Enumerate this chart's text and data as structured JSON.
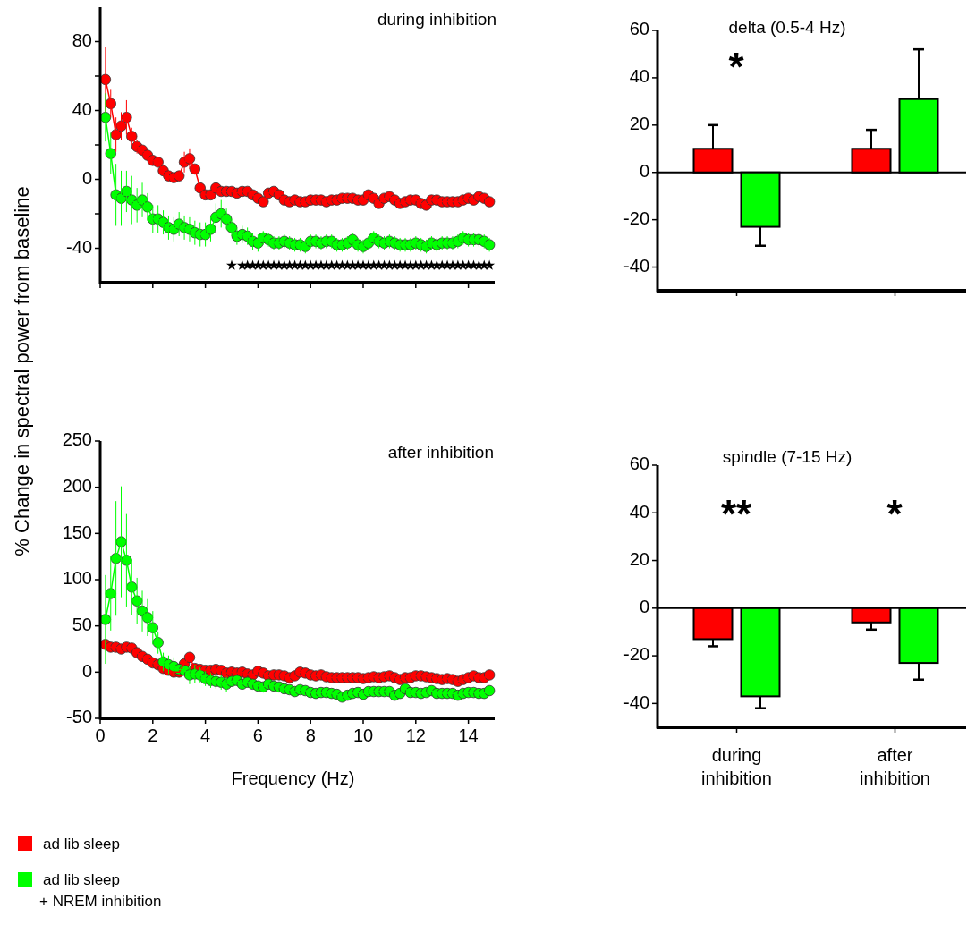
{
  "chart_data": [
    {
      "type": "line",
      "title": "during inhibition",
      "ylabel": "% Change in spectral power from baseline",
      "marker": "circle",
      "legend": "bottom left",
      "tick_labels": "y",
      "xlim": [
        0,
        15
      ],
      "xticks": [
        0,
        2,
        4,
        6,
        8,
        10,
        12,
        14
      ],
      "ylim": [
        -60,
        100
      ],
      "yticks": [
        -40,
        {
          "value": -20,
          "label": null
        },
        0,
        {
          "value": 20,
          "label": null
        },
        40,
        {
          "value": 60,
          "label": null
        },
        80
      ],
      "x": [
        0.2,
        0.4,
        0.6,
        0.8,
        1,
        1.2,
        1.4,
        1.6,
        1.8,
        2,
        2.2,
        2.4,
        2.6,
        2.8,
        3,
        3.2,
        3.4,
        3.6,
        3.8,
        4,
        4.2,
        4.4,
        4.6,
        4.8,
        5,
        5.2,
        5.4,
        5.6,
        5.8,
        6,
        6.2,
        6.4,
        6.6,
        6.8,
        7,
        7.2,
        7.4,
        7.6,
        7.8,
        8,
        8.2,
        8.4,
        8.6,
        8.8,
        9,
        9.2,
        9.4,
        9.6,
        9.8,
        10,
        10.2,
        10.4,
        10.6,
        10.8,
        11,
        11.2,
        11.4,
        11.6,
        11.8,
        12,
        12.2,
        12.4,
        12.6,
        12.8,
        13,
        13.2,
        13.4,
        13.6,
        13.8,
        14,
        14.2,
        14.4,
        14.6,
        14.8
      ],
      "series": [
        {
          "name": "ad lib sleep",
          "color": "#ff0000",
          "values": [
            58,
            44,
            26,
            31,
            36,
            25,
            19,
            17,
            14,
            11,
            10,
            5,
            2,
            1,
            2,
            10,
            12,
            6,
            -5,
            -9,
            -9,
            -5,
            -7,
            -7,
            -7,
            -8,
            -7,
            -7,
            -9,
            -11,
            -13,
            -8,
            -7,
            -9,
            -12,
            -13,
            -12,
            -13,
            -13,
            -12,
            -12,
            -12,
            -13,
            -12,
            -12,
            -11,
            -11,
            -11,
            -12,
            -12,
            -9,
            -11,
            -14,
            -11,
            -10,
            -12,
            -14,
            -13,
            -12,
            -12,
            -14,
            -15,
            -12,
            -12,
            -13,
            -13,
            -13,
            -13,
            -12,
            -11,
            -12,
            -10,
            -11,
            -13
          ],
          "errors": [
            19,
            8,
            10,
            8,
            10,
            5,
            4,
            3,
            3,
            3,
            3,
            3,
            3,
            3,
            3,
            6,
            6,
            3,
            null,
            null,
            null,
            null,
            null,
            null,
            null,
            null,
            null,
            null,
            null,
            null,
            null,
            null,
            null,
            null,
            null,
            null,
            null,
            null,
            null,
            null,
            null,
            null,
            null,
            null,
            null,
            null,
            null,
            null,
            null,
            null,
            null,
            null,
            null,
            null,
            null,
            null,
            null,
            null,
            null,
            null,
            null,
            null,
            null,
            null,
            null,
            null,
            null,
            null,
            null,
            null,
            null,
            null,
            null,
            null
          ]
        },
        {
          "name": "ad lib sleep + NREM inhibition",
          "color": "#00ff00",
          "values": [
            36,
            15,
            -9,
            -11,
            -7,
            -12,
            -15,
            -12,
            -16,
            -23,
            -23,
            -25,
            -28,
            -29,
            -26,
            -28,
            -29,
            -31,
            -32,
            -32,
            -29,
            -22,
            -20,
            -23,
            -28,
            -33,
            -32,
            -33,
            -36,
            -37,
            -34,
            -35,
            -37,
            -37,
            -36,
            -37,
            -38,
            -38,
            -39,
            -36,
            -36,
            -37,
            -36,
            -36,
            -38,
            -38,
            -37,
            -35,
            -38,
            -39,
            -37,
            -34,
            -36,
            -37,
            -36,
            -37,
            -38,
            -38,
            -38,
            -37,
            -38,
            -39,
            -37,
            -38,
            -37,
            -37,
            -37,
            -36,
            -34,
            -35,
            -35,
            -35,
            -36,
            -38
          ],
          "errors": [
            14,
            12,
            18,
            16,
            12,
            14,
            10,
            10,
            8,
            8,
            8,
            7,
            7,
            7,
            7,
            7,
            7,
            7,
            7,
            7,
            7,
            8,
            8,
            6,
            5,
            5,
            5,
            5,
            5,
            5,
            4,
            4,
            4,
            4,
            4,
            4,
            4,
            4,
            4,
            4,
            4,
            4,
            4,
            4,
            4,
            4,
            4,
            4,
            4,
            4,
            4,
            4,
            4,
            4,
            4,
            4,
            4,
            4,
            4,
            4,
            4,
            4,
            4,
            4,
            4,
            4,
            4,
            4,
            4,
            4,
            4,
            4,
            4,
            4
          ]
        },
        {
          "type": "scatter",
          "marker": "star",
          "color": "#000000",
          "x": [
            5,
            5.4,
            5.6,
            5.8,
            6,
            6.2,
            6.4,
            6.6,
            6.8,
            7,
            7.2,
            7.4,
            7.6,
            7.8,
            8,
            8.2,
            8.4,
            8.6,
            8.8,
            9,
            9.2,
            9.4,
            9.6,
            9.8,
            10,
            10.2,
            10.4,
            10.6,
            10.8,
            11,
            11.2,
            11.4,
            11.6,
            11.8,
            12,
            12.2,
            12.4,
            12.6,
            12.8,
            13,
            13.2,
            13.4,
            13.6,
            13.8,
            14,
            14.2,
            14.4,
            14.6,
            14.8
          ],
          "values": [
            -50,
            -50,
            -50,
            -50,
            -50,
            -50,
            -50,
            -50,
            -50,
            -50,
            -50,
            -50,
            -50,
            -50,
            -50,
            -50,
            -50,
            -50,
            -50,
            -50,
            -50,
            -50,
            -50,
            -50,
            -50,
            -50,
            -50,
            -50,
            -50,
            -50,
            -50,
            -50,
            -50,
            -50,
            -50,
            -50,
            -50,
            -50,
            -50,
            -50,
            -50,
            -50,
            -50,
            -50,
            -50,
            -50,
            -50,
            -50,
            -50
          ]
        }
      ]
    },
    {
      "type": "line",
      "title": "after inhibition",
      "xlabel": "Frequency (Hz)",
      "marker": "circle",
      "xlim": [
        0,
        15
      ],
      "xticks": [
        0,
        2,
        4,
        6,
        8,
        10,
        12,
        14
      ],
      "ylim": [
        -50,
        250
      ],
      "yticks": [
        -50,
        0,
        50,
        100,
        150,
        200,
        250
      ],
      "x": [
        0.2,
        0.4,
        0.6,
        0.8,
        1,
        1.2,
        1.4,
        1.6,
        1.8,
        2,
        2.2,
        2.4,
        2.6,
        2.8,
        3,
        3.2,
        3.4,
        3.6,
        3.8,
        4,
        4.2,
        4.4,
        4.6,
        4.8,
        5,
        5.2,
        5.4,
        5.6,
        5.8,
        6,
        6.2,
        6.4,
        6.6,
        6.8,
        7,
        7.2,
        7.4,
        7.6,
        7.8,
        8,
        8.2,
        8.4,
        8.6,
        8.8,
        9,
        9.2,
        9.4,
        9.6,
        9.8,
        10,
        10.2,
        10.4,
        10.6,
        10.8,
        11,
        11.2,
        11.4,
        11.6,
        11.8,
        12,
        12.2,
        12.4,
        12.6,
        12.8,
        13,
        13.2,
        13.4,
        13.6,
        13.8,
        14,
        14.2,
        14.4,
        14.6,
        14.8
      ],
      "series": [
        {
          "color": "#ff0000",
          "values": [
            30,
            27,
            27,
            25,
            27,
            26,
            21,
            17,
            14,
            10,
            8,
            4,
            2,
            0,
            0,
            9,
            16,
            4,
            3,
            2,
            2,
            3,
            2,
            -1,
            0,
            -1,
            0,
            -2,
            -3,
            1,
            -1,
            -4,
            -3,
            -3,
            -4,
            -6,
            -4,
            0,
            -1,
            -3,
            -4,
            -3,
            -5,
            -6,
            -6,
            -6,
            -6,
            -6,
            -6,
            -7,
            -6,
            -5,
            -6,
            -5,
            -4,
            -6,
            -8,
            -6,
            -6,
            -4,
            -4,
            -5,
            -6,
            -7,
            -8,
            -7,
            -8,
            -10,
            -8,
            -6,
            -4,
            -6,
            -6,
            -3
          ],
          "errors": [
            null,
            null,
            null,
            null,
            null,
            null,
            null,
            null,
            null,
            null,
            null,
            null,
            null,
            null,
            null,
            null,
            null,
            null,
            null,
            null,
            null,
            null,
            null,
            null,
            null,
            null,
            null,
            null,
            null,
            null,
            null,
            null,
            null,
            null,
            null,
            null,
            null,
            null,
            null,
            null,
            null,
            null,
            null,
            null,
            null,
            null,
            null,
            null,
            null,
            null,
            null,
            null,
            null,
            null,
            null,
            null,
            null,
            null,
            null,
            null,
            null,
            null,
            null,
            null,
            null,
            null,
            null,
            null,
            null,
            null,
            null,
            null,
            null,
            null
          ]
        },
        {
          "color": "#00ff00",
          "values": [
            57,
            85,
            123,
            141,
            121,
            92,
            77,
            66,
            59,
            48,
            32,
            11,
            8,
            6,
            3,
            2,
            -3,
            -2,
            -3,
            -7,
            -9,
            -10,
            -11,
            -13,
            -10,
            -9,
            -13,
            -11,
            -13,
            -15,
            -16,
            -13,
            -15,
            -16,
            -18,
            -19,
            -21,
            -19,
            -20,
            -22,
            -23,
            -22,
            -22,
            -23,
            -24,
            -27,
            -25,
            -23,
            -22,
            -24,
            -21,
            -21,
            -21,
            -21,
            -21,
            -25,
            -23,
            -18,
            -22,
            -22,
            -23,
            -22,
            -20,
            -23,
            -23,
            -23,
            -23,
            -25,
            -23,
            -22,
            -22,
            -23,
            -23,
            -20
          ],
          "errors": [
            48,
            40,
            62,
            60,
            50,
            30,
            25,
            22,
            20,
            18,
            12,
            10,
            10,
            10,
            null,
            null,
            10,
            10,
            8,
            8,
            8,
            8,
            8,
            8,
            null,
            null,
            null,
            null,
            null,
            null,
            null,
            null,
            null,
            null,
            null,
            null,
            null,
            null,
            null,
            null,
            null,
            null,
            null,
            null,
            null,
            null,
            null,
            null,
            null,
            null,
            null,
            null,
            null,
            null,
            null,
            null,
            null,
            null,
            null,
            null,
            null,
            null,
            null,
            null,
            null,
            null,
            null,
            null,
            null,
            null,
            null,
            null,
            null,
            null
          ]
        }
      ]
    },
    {
      "type": "bar",
      "title": "delta (0.5-4 Hz)",
      "categories": [
        null,
        null
      ],
      "ylim": [
        -50,
        60
      ],
      "yticks": [
        -40,
        -20,
        0,
        20,
        40,
        60
      ],
      "annotations": [
        "*"
      ],
      "series": [
        {
          "color": "#ff0000",
          "values": [
            10,
            10
          ],
          "errors": [
            10,
            8
          ]
        },
        {
          "color": "#00ff00",
          "values": [
            -23,
            31
          ],
          "errors": [
            8,
            21
          ]
        }
      ]
    },
    {
      "type": "bar",
      "title": "spindle (7-15 Hz)",
      "categories": [
        "during inhibition",
        "after inhibition"
      ],
      "ylim": [
        -50,
        60
      ],
      "yticks": [
        -40,
        -20,
        0,
        20,
        40,
        60
      ],
      "annotations": [
        "**",
        "*"
      ],
      "series": [
        {
          "color": "#ff0000",
          "values": [
            -13,
            -6
          ],
          "errors": [
            3,
            3
          ]
        },
        {
          "color": "#00ff00",
          "values": [
            -37,
            -23
          ],
          "errors": [
            5,
            7
          ]
        }
      ]
    }
  ]
}
